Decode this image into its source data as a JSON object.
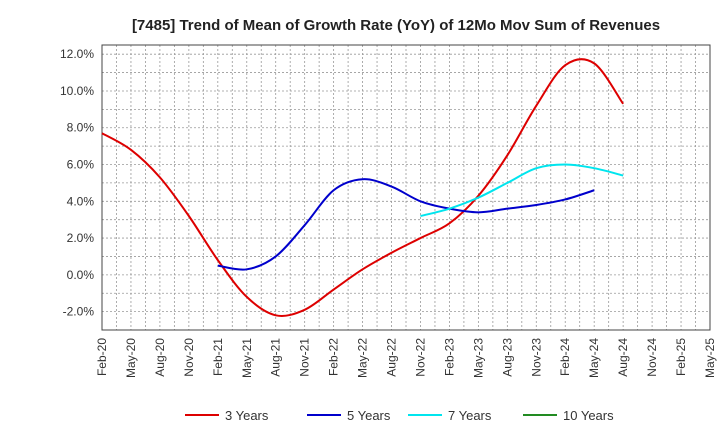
{
  "chart_data": {
    "type": "line",
    "title": "[7485]  Trend of Mean of Growth Rate (YoY) of 12Mo Mov Sum of Revenues",
    "xlabel": "",
    "ylabel": "",
    "ylim": [
      -3.0,
      12.5
    ],
    "y_ticks": [
      -2.0,
      0.0,
      2.0,
      4.0,
      6.0,
      8.0,
      10.0,
      12.0
    ],
    "y_tick_labels": [
      "-2.0%",
      "0.0%",
      "2.0%",
      "4.0%",
      "6.0%",
      "8.0%",
      "10.0%",
      "12.0%"
    ],
    "x_tick_labels": [
      "Feb-20",
      "May-20",
      "Aug-20",
      "Nov-20",
      "Feb-21",
      "May-21",
      "Aug-21",
      "Nov-21",
      "Feb-22",
      "May-22",
      "Aug-22",
      "Nov-22",
      "Feb-23",
      "May-23",
      "Aug-23",
      "Nov-23",
      "Feb-24",
      "May-24",
      "Aug-24",
      "Nov-24",
      "Feb-25",
      "May-25"
    ],
    "grid": true,
    "legend_position": "bottom",
    "series": [
      {
        "name": "3 Years",
        "color": "#dd0000",
        "points": [
          [
            0,
            7.7
          ],
          [
            1,
            6.8
          ],
          [
            2,
            5.3
          ],
          [
            3,
            3.2
          ],
          [
            4,
            0.8
          ],
          [
            5,
            -1.2
          ],
          [
            6,
            -2.2
          ],
          [
            7,
            -1.9
          ],
          [
            8,
            -0.8
          ],
          [
            9,
            0.3
          ],
          [
            10,
            1.2
          ],
          [
            11,
            2.0
          ],
          [
            12,
            2.8
          ],
          [
            13,
            4.3
          ],
          [
            14,
            6.5
          ],
          [
            15,
            9.2
          ],
          [
            16,
            11.4
          ],
          [
            17,
            11.5
          ],
          [
            18,
            9.3
          ]
        ]
      },
      {
        "name": "5 Years",
        "color": "#0000cc",
        "points": [
          [
            4,
            0.5
          ],
          [
            5,
            0.3
          ],
          [
            6,
            1.0
          ],
          [
            7,
            2.7
          ],
          [
            8,
            4.6
          ],
          [
            9,
            5.2
          ],
          [
            10,
            4.8
          ],
          [
            11,
            4.0
          ],
          [
            12,
            3.6
          ],
          [
            13,
            3.4
          ],
          [
            14,
            3.6
          ],
          [
            15,
            3.8
          ],
          [
            16,
            4.1
          ],
          [
            17,
            4.6
          ]
        ]
      },
      {
        "name": "7 Years",
        "color": "#00e5ee",
        "points": [
          [
            11,
            3.2
          ],
          [
            12,
            3.6
          ],
          [
            13,
            4.2
          ],
          [
            14,
            5.0
          ],
          [
            15,
            5.8
          ],
          [
            16,
            6.0
          ],
          [
            17,
            5.8
          ],
          [
            18,
            5.4
          ]
        ]
      },
      {
        "name": "10 Years",
        "color": "#228b22",
        "points": []
      }
    ]
  }
}
